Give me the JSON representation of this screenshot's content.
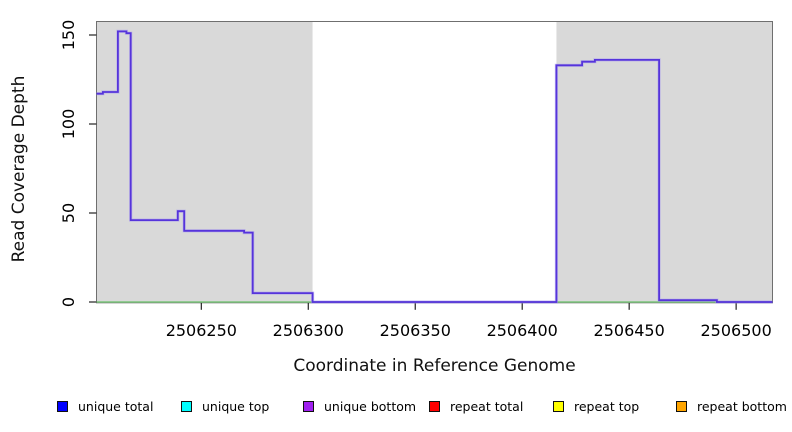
{
  "chart_data": {
    "type": "line",
    "step": true,
    "title": "",
    "xlabel": "Coordinate in Reference Genome",
    "ylabel": "Read Coverage Depth",
    "xlim": [
      2506201,
      2506517
    ],
    "ylim": [
      0,
      158
    ],
    "x_ticks": [
      "2506250",
      "2506300",
      "2506350",
      "2506400",
      "2506450",
      "2506500"
    ],
    "y_ticks": [
      "0",
      "50",
      "100",
      "150"
    ],
    "grid": false,
    "plot_background": "#ffffff",
    "shaded_regions": [
      {
        "name": "left-shaded-region",
        "from": 2506201,
        "to": 2506302,
        "color": "#d9d9d9"
      },
      {
        "name": "right-shaded-region",
        "from": 2506416,
        "to": 2506517,
        "color": "#d9d9d9"
      }
    ],
    "baseline": {
      "value": 0,
      "color": "#7cc67c"
    },
    "series": [
      {
        "name": "coverage-step-line",
        "color": "#5634db",
        "steps": [
          [
            2506201,
            117
          ],
          [
            2506204,
            118
          ],
          [
            2506211,
            152
          ],
          [
            2506215,
            151
          ],
          [
            2506217,
            46
          ],
          [
            2506239,
            51
          ],
          [
            2506242,
            40
          ],
          [
            2506270,
            39
          ],
          [
            2506274,
            5
          ],
          [
            2506302,
            0
          ],
          [
            2506416,
            133
          ],
          [
            2506428,
            135
          ],
          [
            2506434,
            136
          ],
          [
            2506464,
            1
          ],
          [
            2506491,
            0
          ],
          [
            2506517,
            0
          ]
        ]
      }
    ],
    "legend_position": "bottom",
    "legend": [
      {
        "label": "unique total",
        "color": "#0000ff"
      },
      {
        "label": "unique top",
        "color": "#00ffff"
      },
      {
        "label": "unique bottom",
        "color": "#a020f0"
      },
      {
        "label": "repeat total",
        "color": "#ff0000"
      },
      {
        "label": "repeat top",
        "color": "#ffff00"
      },
      {
        "label": "repeat bottom",
        "color": "#ffa500"
      }
    ]
  }
}
